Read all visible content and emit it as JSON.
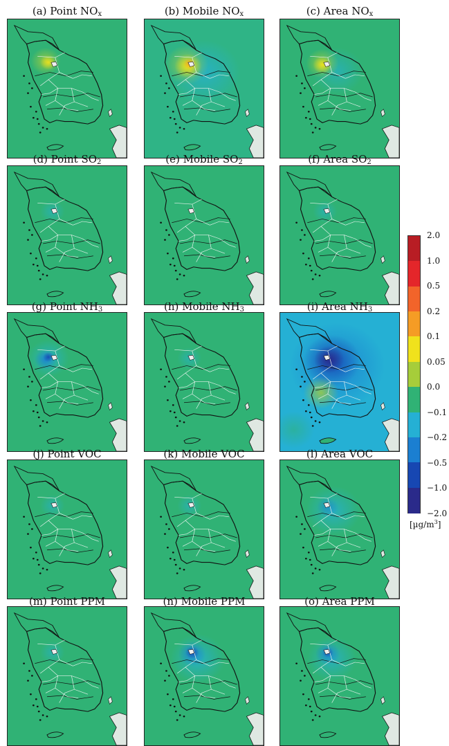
{
  "panels": [
    {
      "title": "(a) Point NO",
      "sub": "x",
      "pattern": "point-nox"
    },
    {
      "title": "(b) Mobile NO",
      "sub": "x",
      "pattern": "mobile-nox"
    },
    {
      "title": "(c) Area NO",
      "sub": "x",
      "pattern": "area-nox"
    },
    {
      "title": "(d) Point SO",
      "sub": "2",
      "pattern": "weak"
    },
    {
      "title": "(e) Mobile SO",
      "sub": "2",
      "pattern": "none"
    },
    {
      "title": "(f) Area SO",
      "sub": "2",
      "pattern": "weak"
    },
    {
      "title": "(g) Point NH",
      "sub": "3",
      "pattern": "point-nh3"
    },
    {
      "title": "(h) Mobile NH",
      "sub": "3",
      "pattern": "weak"
    },
    {
      "title": "(i) Area NH",
      "sub": "3",
      "pattern": "area-nh3"
    },
    {
      "title": "(j) Point VOC",
      "sub": "",
      "pattern": "weak"
    },
    {
      "title": "(k) Mobile VOC",
      "sub": "",
      "pattern": "weak"
    },
    {
      "title": "(l) Area VOC",
      "sub": "",
      "pattern": "area-voc"
    },
    {
      "title": "(m) Point PPM",
      "sub": "",
      "pattern": "weak"
    },
    {
      "title": "(n) Mobile PPM",
      "sub": "",
      "pattern": "mobile-ppm"
    },
    {
      "title": "(o) Area PPM",
      "sub": "",
      "pattern": "area-ppm"
    }
  ],
  "colorbar": {
    "labels": [
      "2.0",
      "1.0",
      "0.5",
      "0.2",
      "0.1",
      "0.05",
      "0.0",
      "−0.1",
      "−0.2",
      "−0.5",
      "−1.0",
      "−2.0"
    ],
    "colors": [
      "#b81d24",
      "#e4262a",
      "#f2642a",
      "#f59c25",
      "#f0e21c",
      "#a6cd3a",
      "#30b275",
      "#25b0d4",
      "#1b7fd1",
      "#1747b2",
      "#2a2a8a"
    ],
    "unit": "[µg/m",
    "unit_sup": "3",
    "unit_close": "]"
  },
  "colors": {
    "background": "#30b275",
    "land_outline": "#111111",
    "boundaries": "#e9f3ee"
  }
}
